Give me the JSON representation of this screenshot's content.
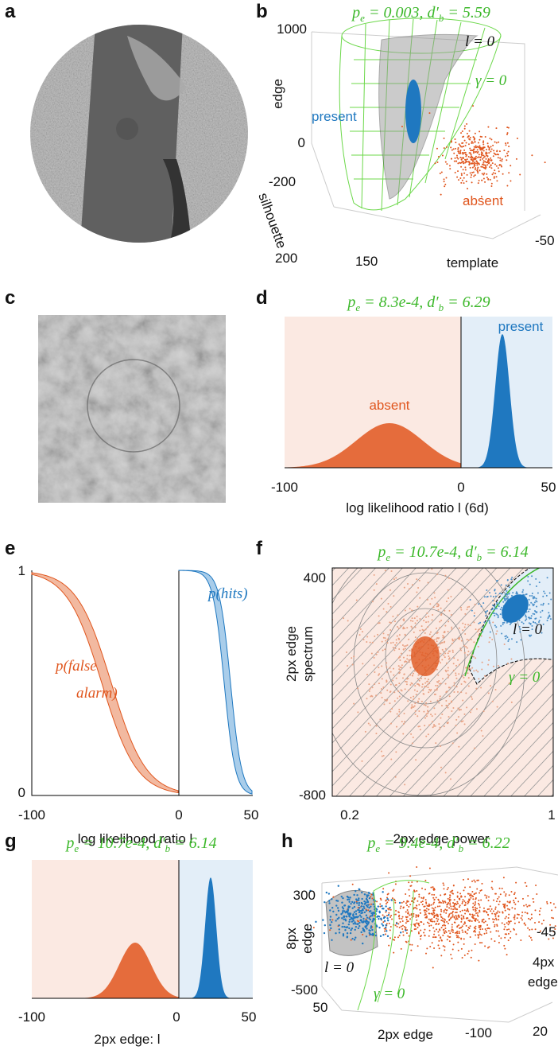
{
  "panels": [
    {
      "label": "a"
    },
    {
      "label": "b",
      "title": [
        "p",
        "e",
        " = 0.003,  d′",
        "b",
        " = 5.59"
      ],
      "texts": {
        "edge_top": "1000",
        "edge_zero": "0",
        "edge_label": "edge",
        "present": "present",
        "l0": "l = 0",
        "g0": "γ = 0",
        "sil_tick1": "-200",
        "sil_label": "silhouette",
        "absent": "absent",
        "sil_tick2": "200",
        "tmpl_tick1": "150",
        "tmpl_label": "template",
        "tmpl_tick2": "-50"
      }
    },
    {
      "label": "c"
    },
    {
      "label": "d",
      "title": [
        "p",
        "e",
        " = 8.3e-4,  d′",
        "b",
        " = 6.29"
      ],
      "texts": {
        "x1": "-100",
        "x2": "0",
        "x3": "50",
        "xlabel": "log likelihood ratio l  (6d)",
        "absent": "absent",
        "present": "present"
      }
    },
    {
      "label": "e",
      "texts": {
        "y1": "1",
        "y0": "0",
        "x1": "-100",
        "x2": "0",
        "x3": "50",
        "xlabel": "log likelihood ratio l",
        "hits": "p(hits)",
        "fa1": "p(false",
        "fa2": "alarm)"
      }
    },
    {
      "label": "f",
      "title": [
        "p",
        "e",
        " = 10.7e-4,  d′",
        "b",
        " = 6.14"
      ],
      "texts": {
        "y1": "400",
        "y2": "-800",
        "x1": "0.2",
        "x2": "1",
        "ylabel1": "2px edge",
        "ylabel2": "spectrum",
        "xlabel": "2px edge power",
        "l0": "l = 0",
        "g0": "γ = 0"
      }
    },
    {
      "label": "g",
      "title": [
        "p",
        "e",
        " = 10.7e-4,  d′",
        "b",
        " = 6.14"
      ],
      "texts": {
        "x1": "-100",
        "x2": "0",
        "x3": "50",
        "xlabel": "2px edge: l"
      }
    },
    {
      "label": "h",
      "title": [
        "p",
        "e",
        " = 9.4e-4,  d′",
        "b",
        " = 6.22"
      ],
      "texts": {
        "z1": "300",
        "z2": "-500",
        "zlabel1": "8px",
        "zlabel2": "edge",
        "x1": "50",
        "x2": "-100",
        "xlabel": "2px edge",
        "y1": "-45",
        "y2": "20",
        "ylabel1": "4px",
        "ylabel2": "edge",
        "l0": "l = 0",
        "g0": "γ = 0"
      }
    }
  ]
}
